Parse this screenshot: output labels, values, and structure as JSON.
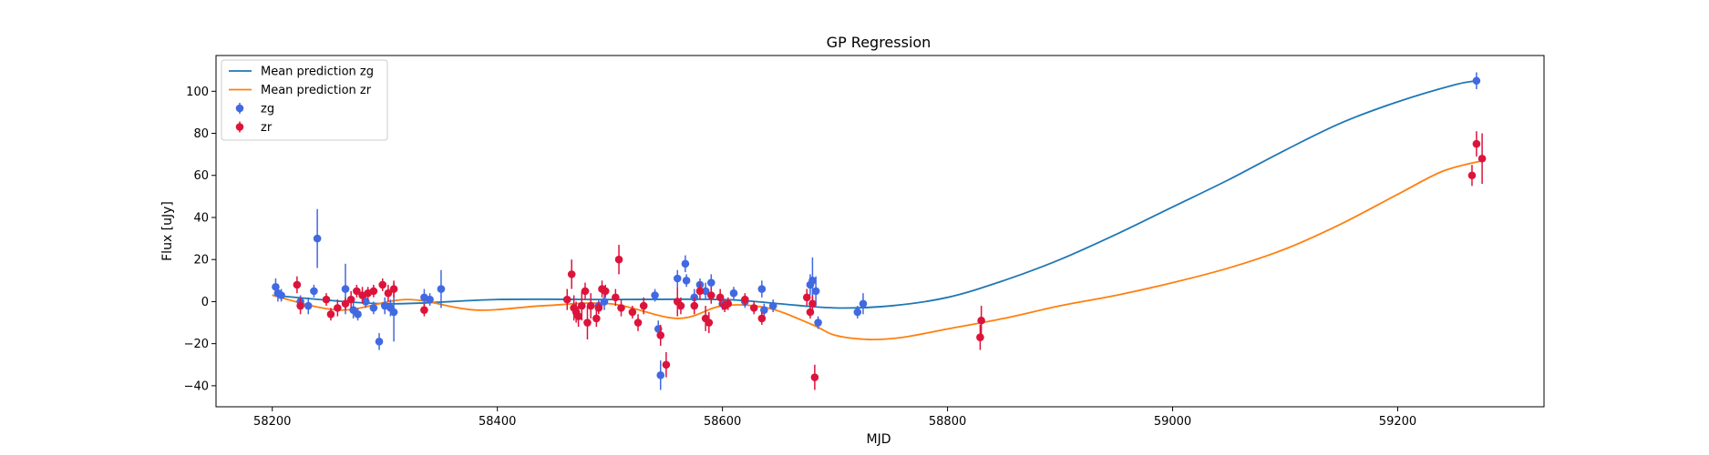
{
  "chart_data": {
    "type": "scatter",
    "title": "GP Regression",
    "xlabel": "MJD",
    "ylabel": "Flux [uJy]",
    "xlim": [
      58150,
      59330
    ],
    "ylim": [
      -50,
      117
    ],
    "xticks": [
      58200,
      58400,
      58600,
      58800,
      59000,
      59200
    ],
    "yticks": [
      -40,
      -20,
      0,
      20,
      40,
      60,
      80,
      100
    ],
    "grid": false,
    "legend_placement": "upper-left",
    "series": [
      {
        "name": "Mean prediction zg",
        "kind": "line",
        "color": "#1f77b4",
        "x": [
          58200,
          58300,
          58400,
          58500,
          58600,
          58650,
          58700,
          58750,
          58800,
          58850,
          58900,
          58950,
          59000,
          59050,
          59100,
          59150,
          59200,
          59250,
          59270
        ],
        "y": [
          3,
          -1,
          1,
          1,
          1,
          -1,
          -3,
          -2,
          2,
          10,
          20,
          32,
          45,
          58,
          72,
          85,
          95,
          103,
          105
        ]
      },
      {
        "name": "Mean prediction zr",
        "kind": "line",
        "color": "#ff7f0e",
        "x": [
          58200,
          58260,
          58320,
          58380,
          58440,
          58500,
          58560,
          58600,
          58640,
          58680,
          58700,
          58730,
          58760,
          58800,
          58850,
          58900,
          58950,
          59000,
          59050,
          59100,
          59150,
          59200,
          59240,
          59275
        ],
        "y": [
          3,
          -4,
          1,
          -4,
          -2,
          -1,
          -8,
          -2,
          -3,
          -11,
          -16,
          -18,
          -17,
          -13,
          -8,
          -2,
          3,
          9,
          16,
          25,
          37,
          51,
          62,
          67
        ]
      },
      {
        "name": "zg",
        "kind": "errorbar",
        "color": "#4169e1",
        "x": [
          58203,
          58205,
          58208,
          58225,
          58232,
          58237,
          58240,
          58265,
          58272,
          58276,
          58283,
          58290,
          58295,
          58300,
          58305,
          58308,
          58335,
          58340,
          58350,
          58490,
          58495,
          58540,
          58543,
          58545,
          58560,
          58567,
          58568,
          58575,
          58580,
          58585,
          58590,
          58600,
          58610,
          58620,
          58635,
          58637,
          58645,
          58678,
          58680,
          58683,
          58685,
          58720,
          58725,
          59270
        ],
        "y": [
          7,
          4,
          3,
          0,
          -2,
          5,
          30,
          6,
          -4,
          -6,
          0,
          -3,
          -19,
          -2,
          -3,
          -5,
          2,
          1,
          6,
          -2,
          0,
          3,
          -13,
          -35,
          11,
          18,
          10,
          2,
          8,
          5,
          9,
          -1,
          4,
          0,
          6,
          -4,
          -2,
          8,
          10,
          5,
          -10,
          -5,
          -1,
          105
        ],
        "err": [
          4,
          4,
          3,
          3,
          4,
          3,
          14,
          12,
          4,
          3,
          3,
          3,
          4,
          4,
          4,
          14,
          4,
          3,
          9,
          3,
          4,
          3,
          4,
          7,
          4,
          4,
          3,
          4,
          3,
          4,
          4,
          3,
          3,
          3,
          4,
          3,
          3,
          5,
          11,
          7,
          3,
          3,
          5,
          4
        ]
      },
      {
        "name": "zr",
        "kind": "errorbar",
        "color": "#dc143c",
        "x": [
          58222,
          58225,
          58248,
          58252,
          58258,
          58265,
          58270,
          58275,
          58280,
          58285,
          58290,
          58298,
          58303,
          58308,
          58335,
          58462,
          58466,
          58468,
          58470,
          58472,
          58475,
          58478,
          58480,
          58483,
          58488,
          58490,
          58493,
          58496,
          58505,
          58508,
          58510,
          58520,
          58525,
          58530,
          58545,
          58550,
          58560,
          58563,
          58575,
          58580,
          58585,
          58588,
          58590,
          58598,
          58602,
          58605,
          58620,
          58628,
          58635,
          58675,
          58678,
          58680,
          58682,
          58829,
          58830,
          59266,
          59270,
          59275
        ],
        "y": [
          8,
          -2,
          1,
          -6,
          -3,
          -1,
          1,
          5,
          3,
          4,
          5,
          8,
          4,
          6,
          -4,
          1,
          13,
          -3,
          -5,
          -7,
          -2,
          5,
          -10,
          -2,
          -8,
          -3,
          6,
          5,
          2,
          20,
          -3,
          -5,
          -10,
          -2,
          -16,
          -30,
          0,
          -2,
          -2,
          5,
          -8,
          -10,
          3,
          2,
          -2,
          -1,
          1,
          -3,
          -8,
          2,
          -5,
          -1,
          -36,
          -17,
          -9,
          60,
          75,
          68
        ],
        "err": [
          4,
          4,
          3,
          3,
          4,
          3,
          4,
          3,
          4,
          3,
          3,
          3,
          4,
          4,
          3,
          5,
          7,
          6,
          5,
          5,
          7,
          4,
          8,
          6,
          4,
          3,
          4,
          3,
          4,
          7,
          4,
          3,
          4,
          4,
          5,
          6,
          7,
          4,
          4,
          4,
          6,
          5,
          4,
          4,
          3,
          3,
          3,
          3,
          3,
          4,
          3,
          4,
          6,
          6,
          7,
          5,
          6,
          12
        ]
      }
    ]
  }
}
